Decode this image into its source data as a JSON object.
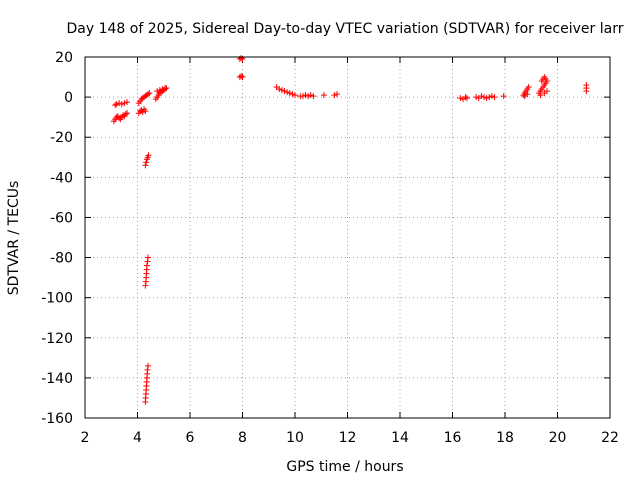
{
  "chart_data": {
    "type": "scatter",
    "title": "Day 148 of 2025, Sidereal Day-to-day VTEC variation (SDTVAR) for receiver larr",
    "xlabel": "GPS time / hours",
    "ylabel": "SDTVAR / TECUs",
    "xlim": [
      2,
      22
    ],
    "ylim": [
      -160,
      20
    ],
    "xticks": [
      2,
      4,
      6,
      8,
      10,
      12,
      14,
      16,
      18,
      20,
      22
    ],
    "yticks": [
      -160,
      -140,
      -120,
      -100,
      -80,
      -60,
      -40,
      -20,
      0,
      20
    ],
    "grid": true,
    "marker": "+",
    "color": "#ff0000",
    "series": [
      {
        "name": "SDTVAR",
        "points": [
          [
            3.1,
            -12
          ],
          [
            3.15,
            -11
          ],
          [
            3.2,
            -10
          ],
          [
            3.25,
            -9.5
          ],
          [
            3.3,
            -10.5
          ],
          [
            3.35,
            -11
          ],
          [
            3.4,
            -10
          ],
          [
            3.45,
            -9
          ],
          [
            3.5,
            -9.5
          ],
          [
            3.55,
            -8.5
          ],
          [
            3.6,
            -8
          ],
          [
            3.15,
            -4
          ],
          [
            3.2,
            -3.5
          ],
          [
            3.3,
            -3
          ],
          [
            3.4,
            -3.5
          ],
          [
            3.5,
            -3
          ],
          [
            3.6,
            -2.5
          ],
          [
            4.05,
            -8
          ],
          [
            4.1,
            -7
          ],
          [
            4.15,
            -6.5
          ],
          [
            4.2,
            -7.5
          ],
          [
            4.25,
            -6
          ],
          [
            4.3,
            -7
          ],
          [
            4.05,
            -3
          ],
          [
            4.1,
            -2
          ],
          [
            4.15,
            -1
          ],
          [
            4.2,
            -0.5
          ],
          [
            4.25,
            0
          ],
          [
            4.3,
            0.5
          ],
          [
            4.35,
            1
          ],
          [
            4.4,
            1.5
          ],
          [
            4.45,
            2
          ],
          [
            4.3,
            -34
          ],
          [
            4.33,
            -32.5
          ],
          [
            4.36,
            -31
          ],
          [
            4.39,
            -30
          ],
          [
            4.42,
            -29
          ],
          [
            4.3,
            -94
          ],
          [
            4.32,
            -92
          ],
          [
            4.33,
            -90
          ],
          [
            4.34,
            -88
          ],
          [
            4.35,
            -86
          ],
          [
            4.36,
            -84
          ],
          [
            4.38,
            -82
          ],
          [
            4.4,
            -80
          ],
          [
            4.3,
            -152
          ],
          [
            4.31,
            -150
          ],
          [
            4.32,
            -148
          ],
          [
            4.33,
            -146
          ],
          [
            4.34,
            -144
          ],
          [
            4.35,
            -142
          ],
          [
            4.36,
            -140
          ],
          [
            4.37,
            -138
          ],
          [
            4.38,
            -136
          ],
          [
            4.4,
            -134
          ],
          [
            4.7,
            -1
          ],
          [
            4.75,
            0
          ],
          [
            4.8,
            1
          ],
          [
            4.85,
            2
          ],
          [
            4.9,
            2.5
          ],
          [
            4.95,
            3
          ],
          [
            5.0,
            3.5
          ],
          [
            5.05,
            4
          ],
          [
            5.1,
            4.5
          ],
          [
            4.75,
            3
          ],
          [
            4.85,
            3.5
          ],
          [
            4.95,
            4
          ],
          [
            5.05,
            4.5
          ],
          [
            7.9,
            19
          ],
          [
            7.95,
            19.5
          ],
          [
            8.0,
            19
          ],
          [
            7.9,
            10
          ],
          [
            7.95,
            10.5
          ],
          [
            8.0,
            10
          ],
          [
            9.3,
            5
          ],
          [
            9.4,
            4
          ],
          [
            9.5,
            3.5
          ],
          [
            9.6,
            3
          ],
          [
            9.7,
            2.5
          ],
          [
            9.8,
            2
          ],
          [
            9.9,
            1.5
          ],
          [
            10.0,
            1
          ],
          [
            10.2,
            0.5
          ],
          [
            10.3,
            0.5
          ],
          [
            10.4,
            1
          ],
          [
            10.5,
            0.5
          ],
          [
            10.6,
            1
          ],
          [
            10.7,
            0.5
          ],
          [
            11.1,
            1
          ],
          [
            11.5,
            1
          ],
          [
            11.6,
            1.5
          ],
          [
            16.3,
            -0.5
          ],
          [
            16.4,
            -1
          ],
          [
            16.5,
            0
          ],
          [
            16.55,
            -0.5
          ],
          [
            16.9,
            0
          ],
          [
            17.0,
            -0.5
          ],
          [
            17.1,
            0.5
          ],
          [
            17.2,
            0
          ],
          [
            17.3,
            -0.5
          ],
          [
            17.4,
            0
          ],
          [
            17.5,
            0.5
          ],
          [
            17.6,
            0
          ],
          [
            17.95,
            0.5
          ],
          [
            18.7,
            1
          ],
          [
            18.75,
            2
          ],
          [
            18.8,
            3
          ],
          [
            18.85,
            4
          ],
          [
            18.9,
            5
          ],
          [
            18.75,
            0.5
          ],
          [
            18.85,
            1.5
          ],
          [
            19.3,
            2
          ],
          [
            19.35,
            3
          ],
          [
            19.4,
            4
          ],
          [
            19.45,
            5
          ],
          [
            19.5,
            6
          ],
          [
            19.55,
            7
          ],
          [
            19.4,
            8
          ],
          [
            19.45,
            9
          ],
          [
            19.5,
            10
          ],
          [
            19.55,
            9
          ],
          [
            19.6,
            8
          ],
          [
            19.35,
            1
          ],
          [
            19.5,
            2
          ],
          [
            19.6,
            3
          ],
          [
            21.1,
            3
          ],
          [
            21.1,
            4.5
          ],
          [
            21.1,
            6
          ]
        ]
      }
    ]
  }
}
